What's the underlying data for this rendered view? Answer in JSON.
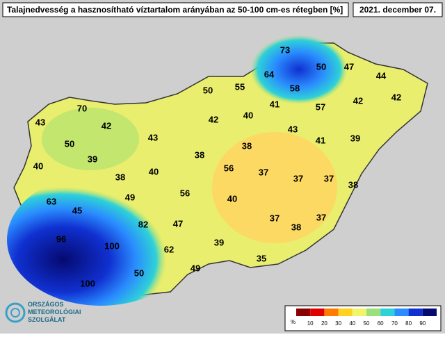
{
  "header": {
    "title": "Talajnedvesség a hasznosítható víztartalom arányában az 50-100 cm-es rétegben [%]",
    "date": "2021. december 07."
  },
  "points": [
    73,
    50,
    47,
    44,
    64,
    55,
    50,
    58,
    57,
    42,
    42,
    41,
    40,
    70,
    43,
    42,
    42,
    43,
    41,
    39,
    50,
    43,
    38,
    39,
    40,
    38,
    56,
    37,
    38,
    40,
    37,
    37,
    38,
    56,
    49,
    40,
    63,
    45,
    82,
    47,
    37,
    38,
    37,
    96,
    100,
    62,
    39,
    35,
    49,
    50,
    100
  ],
  "legend": {
    "unit": "%",
    "ticks": [
      10,
      20,
      30,
      40,
      50,
      60,
      70,
      80,
      90
    ],
    "colors": [
      "#8b0000",
      "#e00000",
      "#ff7a00",
      "#ffd21f",
      "#f2f56a",
      "#9be07a",
      "#2ed1d8",
      "#2a8cff",
      "#1030d0",
      "#050a70"
    ]
  },
  "logo": {
    "line1": "ORSZÁGOS",
    "line2": "METEOROLÓGIAI",
    "line3": "SZOLGÁLAT"
  }
}
